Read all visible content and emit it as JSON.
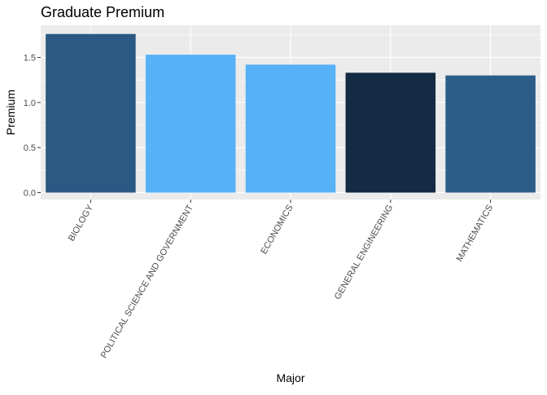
{
  "chart_data": {
    "type": "bar",
    "title": "Graduate Premium",
    "xlabel": "Major",
    "ylabel": "Premium",
    "categories": [
      "BIOLOGY",
      "POLITICAL SCIENCE AND GOVERNMENT",
      "ECONOMICS",
      "GENERAL ENGINEERING",
      "MATHEMATICS"
    ],
    "values": [
      1.76,
      1.53,
      1.42,
      1.33,
      1.3
    ],
    "bar_colors": [
      "#2a5a84",
      "#56b1f7",
      "#56b1f7",
      "#132b43",
      "#2c5d88"
    ],
    "ylim": [
      0,
      1.85
    ],
    "yticks": [
      0.0,
      0.5,
      1.0,
      1.5
    ],
    "ytick_labels": [
      "0.0",
      "0.5",
      "1.0",
      "1.5"
    ],
    "grid": true,
    "legend": "none",
    "panel_background": "#ebebeb",
    "gridline_color": "#ffffff"
  }
}
